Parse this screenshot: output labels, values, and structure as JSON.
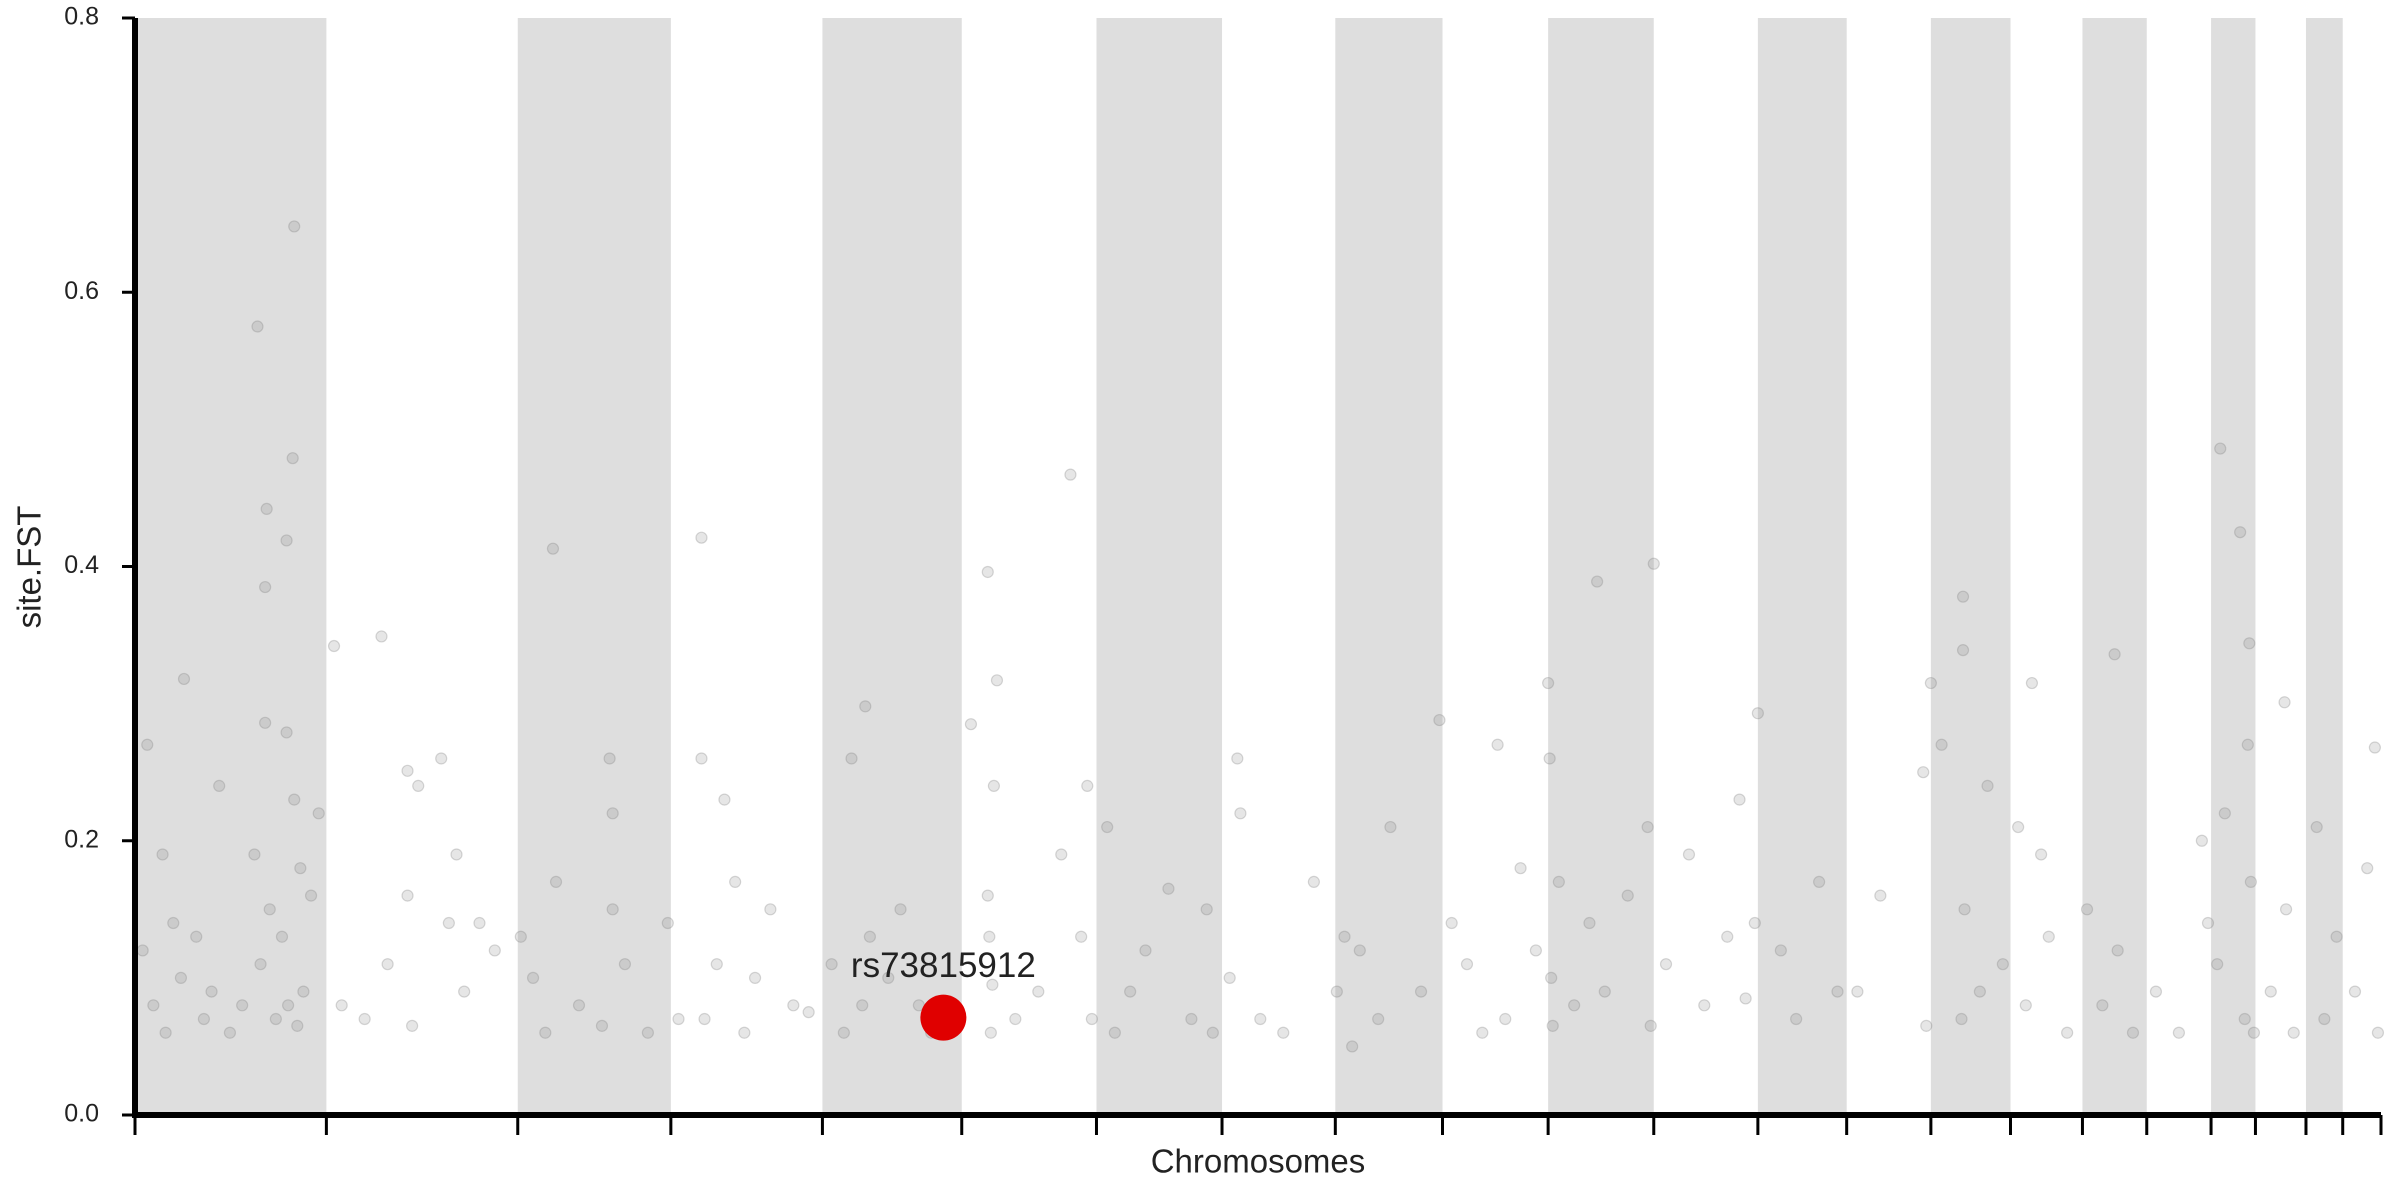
{
  "chart_data": {
    "type": "scatter",
    "x_label": "Chromosomes",
    "y_label": "site.FST",
    "xlim": [
      0,
      1467
    ],
    "ylim": [
      0,
      0.8
    ],
    "yticks": [
      {
        "value": 0,
        "label": "0.0"
      },
      0.2,
      0.4,
      0.6,
      0.8
    ],
    "xticks": [
      0,
      125,
      250,
      350,
      449,
      540,
      628,
      710,
      784,
      854,
      923,
      992,
      1060,
      1118,
      1173,
      1225,
      1272,
      1314,
      1356,
      1385,
      1418,
      1442,
      1467
    ],
    "alternate_shading": true,
    "shade_color": "#dedede",
    "color": "#808080",
    "x": [
      5,
      8,
      12,
      18,
      20,
      25,
      30,
      32,
      40,
      45,
      50,
      55,
      62,
      70,
      78,
      80,
      82,
      85,
      85,
      86,
      88,
      92,
      96,
      99,
      99,
      100,
      103,
      104,
      104,
      106,
      108,
      110,
      115,
      120,
      130,
      135,
      150,
      161,
      165,
      178,
      178,
      181,
      185,
      200,
      205,
      210,
      215,
      225,
      235,
      252,
      260,
      268,
      273,
      275,
      290,
      305,
      310,
      312,
      312,
      320,
      335,
      348,
      355,
      370,
      370,
      372,
      380,
      385,
      392,
      398,
      405,
      415,
      430,
      440,
      455,
      463,
      468,
      475,
      477,
      480,
      492,
      500,
      512,
      520,
      546,
      557,
      557,
      558,
      559,
      560,
      561,
      563,
      575,
      590,
      605,
      611,
      618,
      622,
      625,
      635,
      640,
      650,
      660,
      675,
      690,
      700,
      704,
      715,
      720,
      722,
      735,
      750,
      770,
      785,
      790,
      795,
      800,
      812,
      820,
      840,
      852,
      860,
      870,
      880,
      890,
      895,
      905,
      915,
      923,
      924,
      925,
      926,
      930,
      940,
      950,
      955,
      960,
      975,
      988,
      990,
      992,
      1000,
      1015,
      1025,
      1040,
      1048,
      1052,
      1058,
      1060,
      1075,
      1085,
      1100,
      1112,
      1125,
      1140,
      1168,
      1170,
      1173,
      1180,
      1193,
      1194,
      1194,
      1195,
      1205,
      1210,
      1220,
      1230,
      1235,
      1239,
      1245,
      1250,
      1262,
      1275,
      1285,
      1293,
      1295,
      1305,
      1320,
      1335,
      1350,
      1354,
      1360,
      1362,
      1365,
      1375,
      1378,
      1380,
      1381,
      1382,
      1384,
      1395,
      1404,
      1405,
      1410,
      1425,
      1430,
      1438,
      1450,
      1458,
      1463,
      1465
    ],
    "values": [
      0.12,
      0.27,
      0.08,
      0.19,
      0.06,
      0.14,
      0.1,
      0.318,
      0.13,
      0.07,
      0.09,
      0.24,
      0.06,
      0.08,
      0.19,
      0.575,
      0.11,
      0.385,
      0.286,
      0.442,
      0.15,
      0.07,
      0.13,
      0.419,
      0.279,
      0.08,
      0.479,
      0.648,
      0.23,
      0.065,
      0.18,
      0.09,
      0.16,
      0.22,
      0.342,
      0.08,
      0.07,
      0.349,
      0.11,
      0.251,
      0.16,
      0.065,
      0.24,
      0.26,
      0.14,
      0.19,
      0.09,
      0.14,
      0.12,
      0.13,
      0.1,
      0.06,
      0.413,
      0.17,
      0.08,
      0.065,
      0.26,
      0.22,
      0.15,
      0.11,
      0.06,
      0.14,
      0.07,
      0.421,
      0.26,
      0.07,
      0.11,
      0.23,
      0.17,
      0.06,
      0.1,
      0.15,
      0.08,
      0.075,
      0.11,
      0.06,
      0.26,
      0.08,
      0.298,
      0.13,
      0.1,
      0.15,
      0.08,
      0.06,
      0.285,
      0.396,
      0.16,
      0.13,
      0.06,
      0.095,
      0.24,
      0.317,
      0.07,
      0.09,
      0.19,
      0.467,
      0.13,
      0.24,
      0.07,
      0.21,
      0.06,
      0.09,
      0.12,
      0.165,
      0.07,
      0.15,
      0.06,
      0.1,
      0.26,
      0.22,
      0.07,
      0.06,
      0.17,
      0.09,
      0.13,
      0.05,
      0.12,
      0.07,
      0.21,
      0.09,
      0.288,
      0.14,
      0.11,
      0.06,
      0.27,
      0.07,
      0.18,
      0.12,
      0.315,
      0.26,
      0.1,
      0.065,
      0.17,
      0.08,
      0.14,
      0.389,
      0.09,
      0.16,
      0.21,
      0.065,
      0.402,
      0.11,
      0.19,
      0.08,
      0.13,
      0.23,
      0.085,
      0.14,
      0.293,
      0.12,
      0.07,
      0.17,
      0.09,
      0.09,
      0.16,
      0.25,
      0.065,
      0.315,
      0.27,
      0.07,
      0.378,
      0.339,
      0.15,
      0.09,
      0.24,
      0.11,
      0.21,
      0.08,
      0.315,
      0.19,
      0.13,
      0.06,
      0.15,
      0.08,
      0.336,
      0.12,
      0.06,
      0.09,
      0.06,
      0.2,
      0.14,
      0.11,
      0.486,
      0.22,
      0.425,
      0.07,
      0.27,
      0.344,
      0.17,
      0.06,
      0.09,
      0.301,
      0.15,
      0.06,
      0.21,
      0.07,
      0.13,
      0.09,
      0.18,
      0.268,
      0.06
    ],
    "highlight": {
      "label": "rs73815912",
      "x": 528,
      "value": 0.071,
      "color": "#e00000"
    }
  }
}
